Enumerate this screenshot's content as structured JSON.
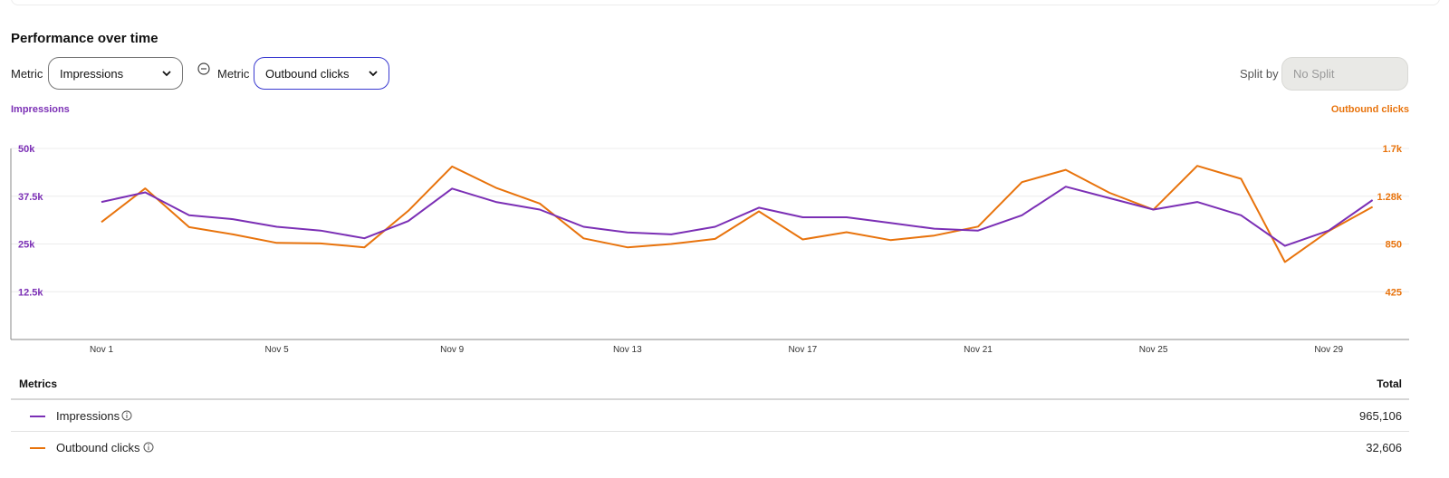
{
  "header": {
    "title": "Performance over time"
  },
  "controls": {
    "metric1": {
      "label": "Metric",
      "value": "Impressions"
    },
    "metric2": {
      "label": "Metric",
      "value": "Outbound clicks"
    },
    "split": {
      "label": "Split by",
      "placeholder": "No Split"
    }
  },
  "colors": {
    "impressions": "#7b2fb5",
    "outbound": "#e8730c",
    "grid": "#ececec",
    "axis": "#8a8a8a"
  },
  "chart_data": {
    "type": "line",
    "x": [
      "Nov 1",
      "Nov 2",
      "Nov 3",
      "Nov 4",
      "Nov 5",
      "Nov 6",
      "Nov 7",
      "Nov 8",
      "Nov 9",
      "Nov 10",
      "Nov 11",
      "Nov 12",
      "Nov 13",
      "Nov 14",
      "Nov 15",
      "Nov 16",
      "Nov 17",
      "Nov 18",
      "Nov 19",
      "Nov 20",
      "Nov 21",
      "Nov 22",
      "Nov 23",
      "Nov 24",
      "Nov 25",
      "Nov 26",
      "Nov 27",
      "Nov 28",
      "Nov 29",
      "Nov 30"
    ],
    "xtick_labels": [
      "Nov 1",
      "Nov 5",
      "Nov 9",
      "Nov 13",
      "Nov 17",
      "Nov 21",
      "Nov 25",
      "Nov 29"
    ],
    "y_left": {
      "label": "Impressions",
      "ticks": [
        "50k",
        "37.5k",
        "25k",
        "12.5k"
      ],
      "tick_values": [
        50000,
        37500,
        25000,
        12500
      ],
      "range": [
        0,
        50000
      ]
    },
    "y_right": {
      "label": "Outbound clicks",
      "ticks": [
        "1.7k",
        "1.28k",
        "850",
        "425"
      ],
      "tick_values": [
        1700,
        1275,
        850,
        425
      ],
      "range": [
        0,
        1700
      ]
    },
    "grid": true,
    "series": [
      {
        "name": "Impressions",
        "axis": "left",
        "values": [
          36000,
          38500,
          32500,
          31500,
          29500,
          28500,
          26500,
          31000,
          39500,
          36000,
          34000,
          29500,
          28000,
          27500,
          29500,
          34500,
          32000,
          32000,
          30500,
          29000,
          28500,
          32500,
          40000,
          37000,
          34000,
          36000,
          32500,
          24500,
          28500,
          36500
        ]
      },
      {
        "name": "Outbound clicks",
        "axis": "right",
        "values": [
          1045,
          1345,
          1000,
          935,
          860,
          855,
          820,
          1145,
          1540,
          1350,
          1210,
          900,
          820,
          850,
          895,
          1140,
          890,
          955,
          885,
          925,
          1005,
          1400,
          1510,
          1305,
          1155,
          1545,
          1430,
          690,
          965,
          1180
        ]
      }
    ]
  },
  "metrics_table": {
    "header_metrics": "Metrics",
    "header_total": "Total",
    "rows": [
      {
        "label": "Impressions",
        "total": "965,106"
      },
      {
        "label": "Outbound clicks",
        "total": "32,606"
      }
    ]
  }
}
